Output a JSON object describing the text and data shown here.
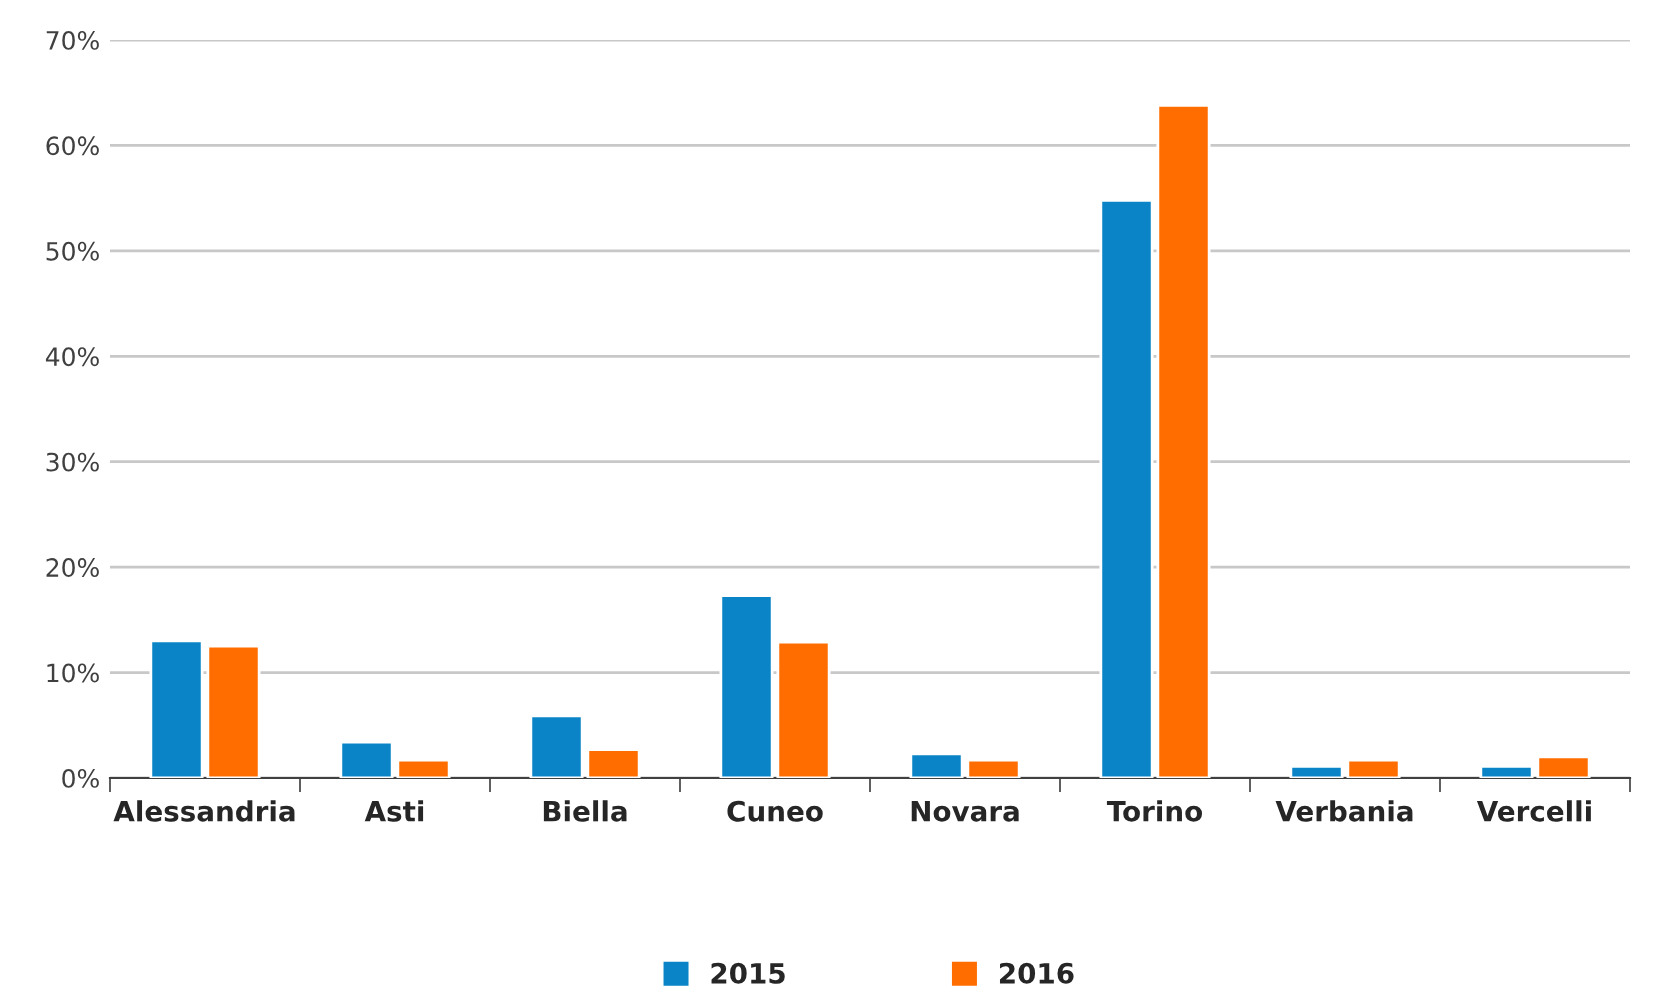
{
  "chart_data": {
    "type": "bar",
    "categories": [
      "Alessandria",
      "Asti",
      "Biella",
      "Cuneo",
      "Novara",
      "Torino",
      "Verbania",
      "Vercelli"
    ],
    "series": [
      {
        "name": "2015",
        "color": "#0a84c6",
        "values": [
          13,
          3.4,
          5.9,
          17.3,
          2.3,
          54.8,
          1.1,
          1.1
        ]
      },
      {
        "name": "2016",
        "color": "#ff6d00",
        "values": [
          12.5,
          1.7,
          2.7,
          12.9,
          1.7,
          63.8,
          1.7,
          2
        ]
      }
    ],
    "ylim": [
      0,
      70
    ],
    "yticks": [
      {
        "value": 0,
        "label": "0%"
      },
      {
        "value": 10,
        "label": "10%"
      },
      {
        "value": 20,
        "label": "20%"
      },
      {
        "value": 30,
        "label": "30%"
      },
      {
        "value": 40,
        "label": "40%"
      },
      {
        "value": 50,
        "label": "50%"
      },
      {
        "value": 60,
        "label": "60%"
      },
      {
        "value": 70,
        "label": "70%"
      }
    ],
    "grid": "y",
    "legend": "bottom"
  }
}
